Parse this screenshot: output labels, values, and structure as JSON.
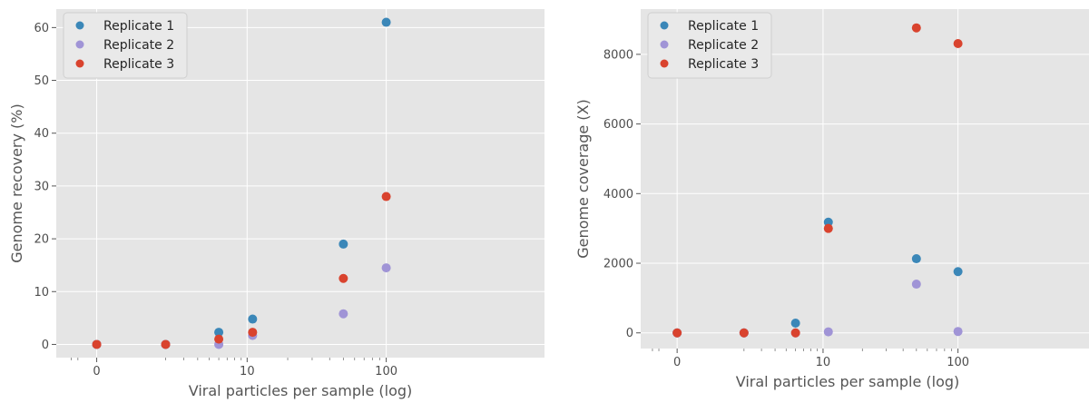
{
  "chart_data": [
    {
      "type": "scatter",
      "xlabel": "Viral particles per sample (log)",
      "ylabel": "Genome recovery (%)",
      "xscale": "symlog",
      "x_ticks": [
        0,
        10,
        100
      ],
      "x_tick_labels": [
        "0",
        "10",
        "100"
      ],
      "y_ticks": [
        0,
        10,
        20,
        30,
        40,
        50,
        60
      ],
      "y_tick_labels": [
        "0",
        "10",
        "20",
        "30",
        "40",
        "50",
        "60"
      ],
      "ylim": [
        -2.5,
        63.5
      ],
      "grid": true,
      "legend_position": "top-left",
      "series": [
        {
          "name": "Replicate 1",
          "color": "#3b87b8",
          "x": [
            0,
            2,
            6,
            11,
            50,
            100
          ],
          "y": [
            0,
            0,
            2.3,
            4.8,
            19.0,
            61.0
          ]
        },
        {
          "name": "Replicate 2",
          "color": "#a094d6",
          "x": [
            0,
            2,
            6,
            11,
            50,
            100
          ],
          "y": [
            0,
            0,
            0,
            1.7,
            5.8,
            14.5
          ]
        },
        {
          "name": "Replicate 3",
          "color": "#d9432e",
          "x": [
            0,
            2,
            6,
            11,
            50,
            100
          ],
          "y": [
            0,
            0,
            1.0,
            2.3,
            12.5,
            28.0
          ]
        }
      ]
    },
    {
      "type": "scatter",
      "xlabel": "Viral particles per sample (log)",
      "ylabel": "Genome coverage (X)",
      "xscale": "symlog",
      "x_ticks": [
        0,
        10,
        100
      ],
      "x_tick_labels": [
        "0",
        "10",
        "100"
      ],
      "y_ticks": [
        0,
        2000,
        4000,
        6000,
        8000
      ],
      "y_tick_labels": [
        "0",
        "2000",
        "4000",
        "6000",
        "8000"
      ],
      "ylim": [
        -450,
        9300
      ],
      "grid": true,
      "legend_position": "top-left",
      "series": [
        {
          "name": "Replicate 1",
          "color": "#3b87b8",
          "x": [
            0,
            2,
            6,
            11,
            50,
            100
          ],
          "y": [
            0,
            0,
            280,
            3180,
            2130,
            1760
          ]
        },
        {
          "name": "Replicate 2",
          "color": "#a094d6",
          "x": [
            0,
            2,
            6,
            11,
            50,
            100
          ],
          "y": [
            0,
            0,
            0,
            30,
            1400,
            40
          ]
        },
        {
          "name": "Replicate 3",
          "color": "#d9432e",
          "x": [
            0,
            2,
            6,
            11,
            50,
            100
          ],
          "y": [
            0,
            0,
            0,
            3000,
            8760,
            8310
          ]
        }
      ]
    }
  ]
}
